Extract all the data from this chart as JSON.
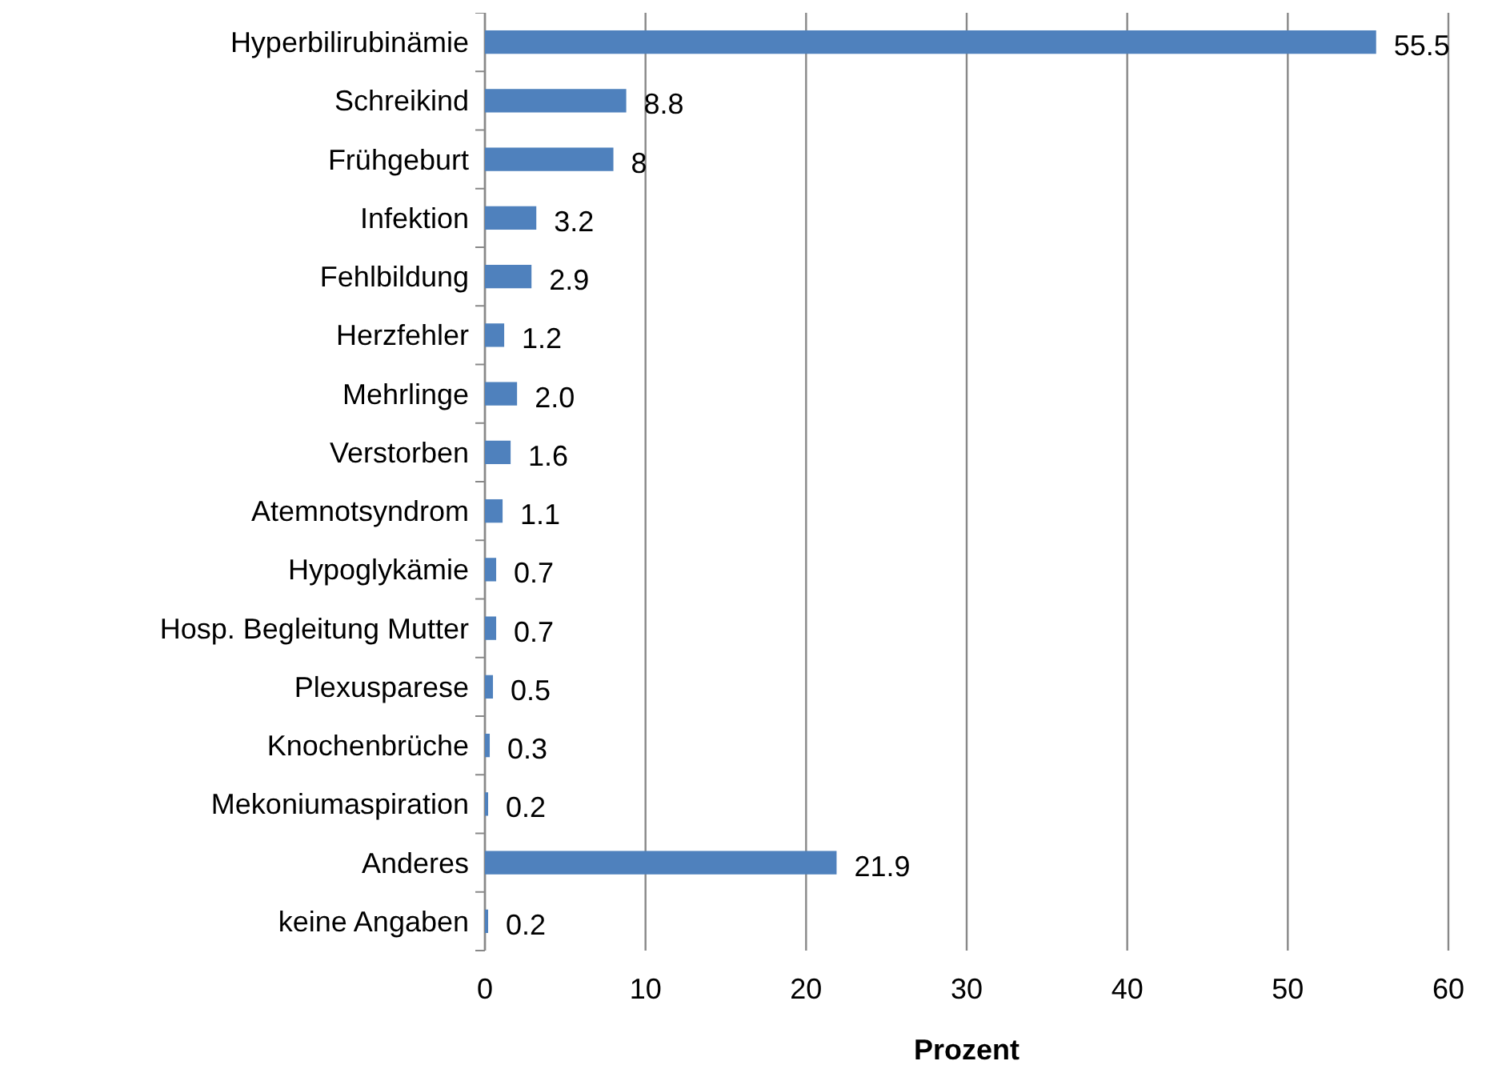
{
  "chart_data": {
    "type": "bar",
    "orientation": "horizontal",
    "xlabel": "Prozent",
    "categories": [
      "Hyperbilirubinämie",
      "Schreikind",
      "Frühgeburt",
      "Infektion",
      "Fehlbildung",
      "Herzfehler",
      "Mehrlinge",
      "Verstorben",
      "Atemnotsyndrom",
      "Hypoglykämie",
      "Hosp. Begleitung Mutter",
      "Plexusparese",
      "Knochenbrüche",
      "Mekoniumaspiration",
      "Anderes",
      "keine Angaben"
    ],
    "values": [
      55.5,
      8.8,
      8,
      3.2,
      2.9,
      1.2,
      2.0,
      1.6,
      1.1,
      0.7,
      0.7,
      0.5,
      0.3,
      0.2,
      21.9,
      0.2
    ],
    "value_labels": [
      "55.5",
      "8.8",
      "8",
      "3.2",
      "2.9",
      "1.2",
      "2.0",
      "1.6",
      "1.1",
      "0.7",
      "0.7",
      "0.5",
      "0.3",
      "0.2",
      "21.9",
      "0.2"
    ],
    "color": "#4f81bd",
    "xlim": [
      0,
      60
    ],
    "xticks": [
      0,
      10,
      20,
      30,
      40,
      50,
      60
    ],
    "grid": "x"
  }
}
